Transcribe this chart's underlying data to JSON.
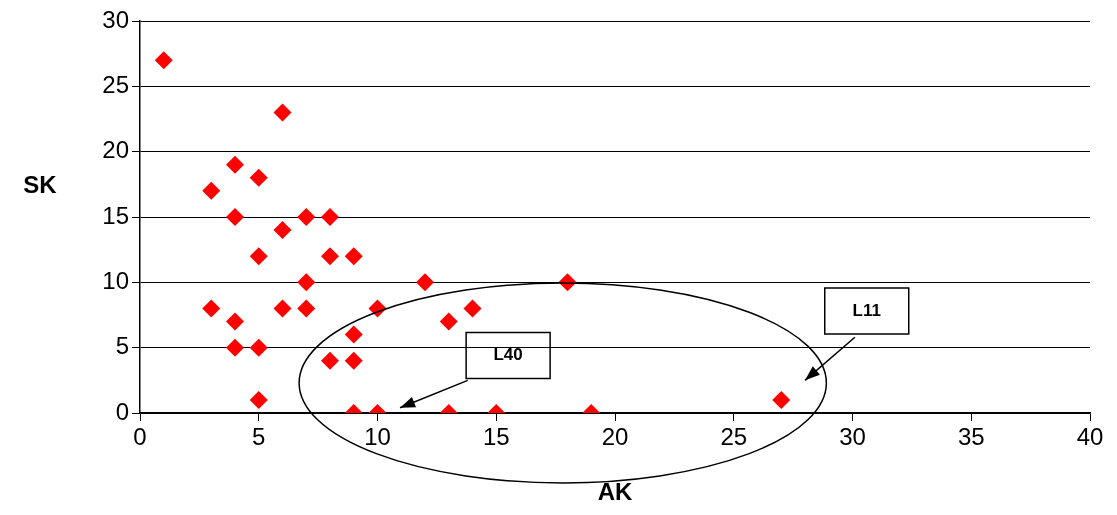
{
  "chart_data": {
    "type": "scatter",
    "xlabel": "AK",
    "ylabel": "SK",
    "x": [
      1,
      6,
      4,
      5,
      3,
      4,
      7,
      8,
      6,
      5,
      8,
      9,
      7,
      12,
      18,
      3,
      6,
      7,
      10,
      14,
      4,
      13,
      9,
      4,
      5,
      8,
      9,
      5,
      27,
      9,
      10,
      13,
      15,
      19
    ],
    "series": [
      {
        "color": "#ff0000",
        "values": [
          27,
          23,
          19,
          18,
          17,
          15,
          15,
          15,
          14,
          12,
          12,
          12,
          10,
          10,
          10,
          8,
          8,
          8,
          8,
          8,
          7,
          7,
          6,
          5,
          5,
          4,
          4,
          1,
          1,
          0,
          0,
          0,
          0,
          0
        ]
      }
    ],
    "xlim": [
      0,
      40
    ],
    "xticks": [
      0,
      5,
      10,
      15,
      20,
      25,
      30,
      35,
      40
    ],
    "ylim": [
      0,
      30
    ],
    "yticks": [
      0,
      5,
      10,
      15,
      20,
      25,
      30
    ],
    "grid": "y",
    "legend": false,
    "marker": "diamond",
    "annotations": [
      "L40",
      "L11"
    ]
  }
}
